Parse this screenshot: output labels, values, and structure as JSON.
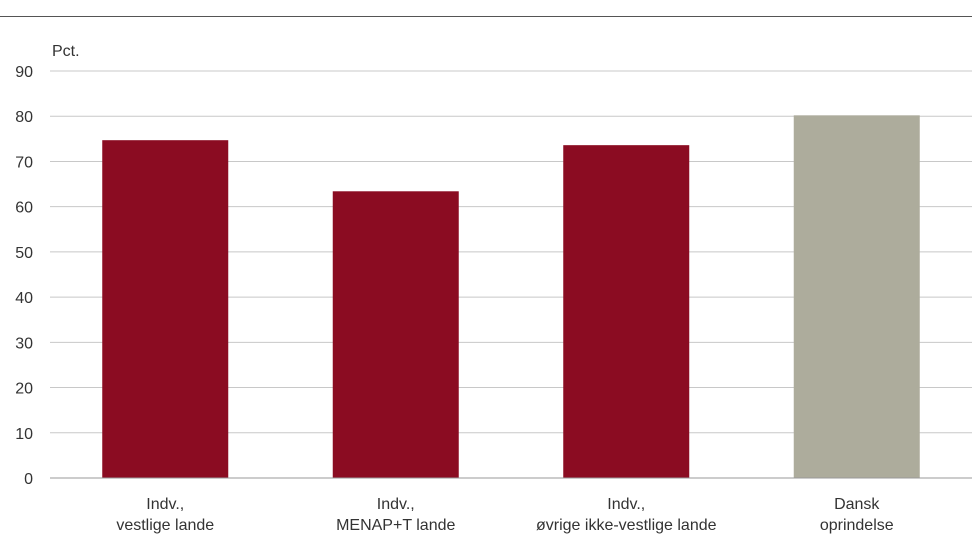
{
  "chart_data": {
    "type": "bar",
    "title": "",
    "ylabel": "Pct.",
    "xlabel": "",
    "ylim": [
      0,
      90
    ],
    "yticks": [
      0,
      10,
      20,
      30,
      40,
      50,
      60,
      70,
      80,
      90
    ],
    "grid": true,
    "categories": [
      [
        "Indv.,",
        "vestlige lande"
      ],
      [
        "Indv.,",
        "MENAP+T lande"
      ],
      [
        "Indv.,",
        "øvrige ikke-vestlige lande"
      ],
      [
        "Dansk",
        "oprindelse"
      ]
    ],
    "values": [
      74.7,
      63.4,
      73.6,
      80.2
    ],
    "colors": [
      "#8b0c22",
      "#8b0c22",
      "#8b0c22",
      "#adac9c"
    ]
  },
  "colors": {
    "grid": "#c8c8c8",
    "axis": "#999999"
  }
}
